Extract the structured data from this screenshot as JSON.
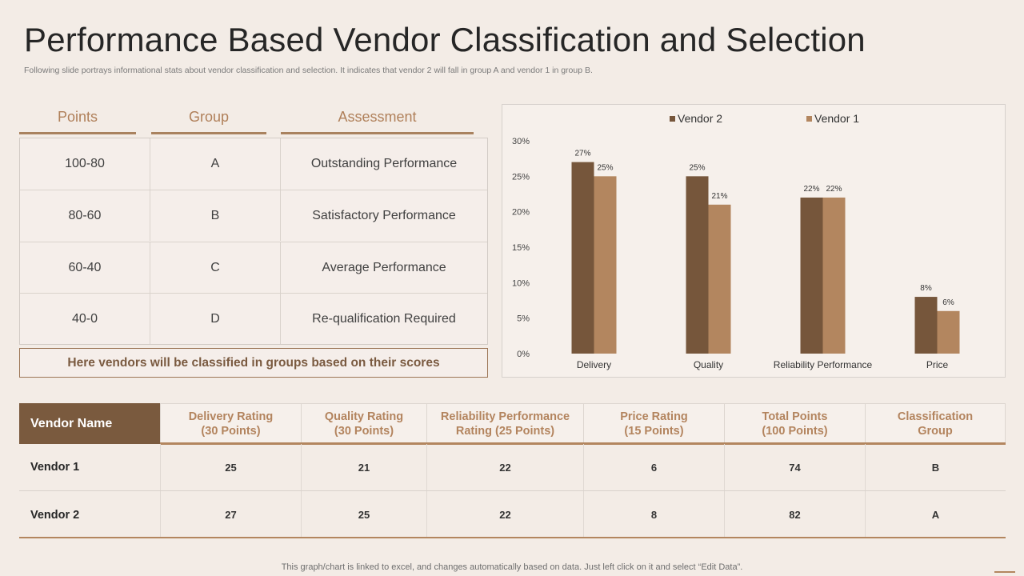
{
  "title": "Performance Based Vendor Classification and Selection",
  "subtitle": "Following slide portrays informational stats about vendor classification and selection. It indicates that vendor 2 will fall in group A and vendor 1 in group B.",
  "group_table": {
    "headers": [
      "Points",
      "Group",
      "Assessment"
    ],
    "rows": [
      [
        "100-80",
        "A",
        "Outstanding  Performance"
      ],
      [
        "80-60",
        "B",
        "Satisfactory  Performance"
      ],
      [
        "60-40",
        "C",
        "Average  Performance"
      ],
      [
        "40-0",
        "D",
        "Re-qualification  Required"
      ]
    ],
    "note": "Here vendors will be classified in groups based on their scores"
  },
  "chart_data": {
    "type": "bar",
    "categories": [
      "Delivery",
      "Quality",
      "Reliability  Performance",
      "Price"
    ],
    "series": [
      {
        "name": "Vendor 2",
        "values": [
          27,
          25,
          22,
          8
        ],
        "color": "#76563b"
      },
      {
        "name": "Vendor 1",
        "values": [
          25,
          21,
          22,
          6
        ],
        "color": "#b3865f"
      }
    ],
    "ylim": [
      0,
      30
    ],
    "yticks": [
      "0%",
      "5%",
      "10%",
      "15%",
      "20%",
      "25%",
      "30%"
    ],
    "value_suffix": "%",
    "legend_position": "top",
    "grid": false
  },
  "vendor_table": {
    "name_header": "Vendor Name",
    "headers": [
      [
        "Delivery Rating",
        "(30 Points)"
      ],
      [
        "Quality Rating",
        "(30 Points)"
      ],
      [
        "Reliability Performance",
        "Rating (25 Points)"
      ],
      [
        "Price Rating",
        "(15 Points)"
      ],
      [
        "Total Points",
        "(100 Points)"
      ],
      [
        "Classification",
        "Group"
      ]
    ],
    "rows": [
      {
        "name": "Vendor 1",
        "values": [
          "25",
          "21",
          "22",
          "6",
          "74",
          "B"
        ]
      },
      {
        "name": "Vendor 2",
        "values": [
          "27",
          "25",
          "22",
          "8",
          "82",
          "A"
        ]
      }
    ]
  },
  "footer": "This graph/chart is linked to excel,  and changes automatically based on data. Just left click on it and select “Edit Data”."
}
